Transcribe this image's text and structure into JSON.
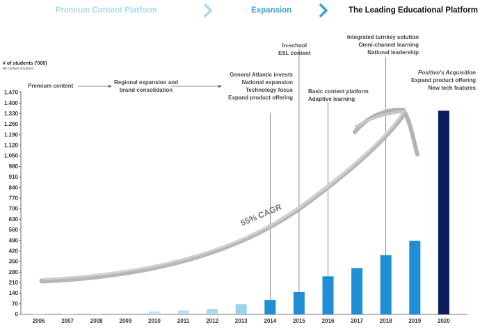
{
  "header": {
    "phases": [
      "Premium Content Platform",
      "Expansion",
      "The Leading Educational Platform"
    ],
    "colors": [
      "#a9d8ee",
      "#3ba3d6",
      "#111111"
    ],
    "chevron_colors": [
      "#a9d8ee",
      "#3ba3d6"
    ]
  },
  "y_axis": {
    "label": "# of students ('000)",
    "sublabel": "All content solutions"
  },
  "annotations": {
    "premium": [
      "Premium content"
    ],
    "regional": [
      "Regional expansion and",
      "brand consolidation"
    ],
    "y2014": [
      "General Atlantic invests",
      "National expansion",
      "Technology focus",
      "Expand product offering"
    ],
    "y2015": [
      "In-school",
      "ESL content"
    ],
    "y2016": [
      "Basic content platform",
      "Adaptive learning"
    ],
    "y2018": [
      "Integrated turnkey solution",
      "Omni-channel learning",
      "National leadership"
    ],
    "y2020": [
      "Positivo's Acquisition",
      "Expand product offering",
      "New tech features"
    ]
  },
  "cagr_label": "55% CAGR",
  "chart_data": {
    "type": "bar",
    "title": "",
    "ylabel": "# of students ('000)",
    "categories": [
      "2006",
      "2007",
      "2008",
      "2009",
      "2010",
      "2011",
      "2012",
      "2013",
      "2014",
      "2015",
      "2016",
      "2017",
      "2018",
      "2019",
      "2020"
    ],
    "values": [
      2,
      4,
      6,
      10,
      20,
      26,
      37,
      68,
      96,
      148,
      252,
      307,
      392,
      488,
      1350
    ],
    "colors": [
      "#e9f4fa",
      "#e2f1f8",
      "#d9eef8",
      "#cfe9f6",
      "#c5e5f4",
      "#b9dff2",
      "#acd9f0",
      "#9dd2ee",
      "#1e8fd5",
      "#1e8fd5",
      "#1e8fd5",
      "#1e8fd5",
      "#1e8fd5",
      "#1e8fd5",
      "#0a1f5c"
    ],
    "yticks": [
      0,
      70,
      140,
      210,
      280,
      350,
      420,
      490,
      560,
      630,
      700,
      770,
      840,
      910,
      980,
      1050,
      1120,
      1190,
      1260,
      1330,
      1400,
      1470
    ],
    "ytick_labels": [
      "0",
      "70",
      "140",
      "210",
      "280",
      "350",
      "420",
      "490",
      "560",
      "630",
      "700",
      "770",
      "840",
      "910",
      "980",
      "1.050",
      "1.120",
      "1.190",
      "1.260",
      "1.330",
      "1.400",
      "1.470"
    ],
    "ylim": [
      0,
      1470
    ],
    "grid": false
  }
}
